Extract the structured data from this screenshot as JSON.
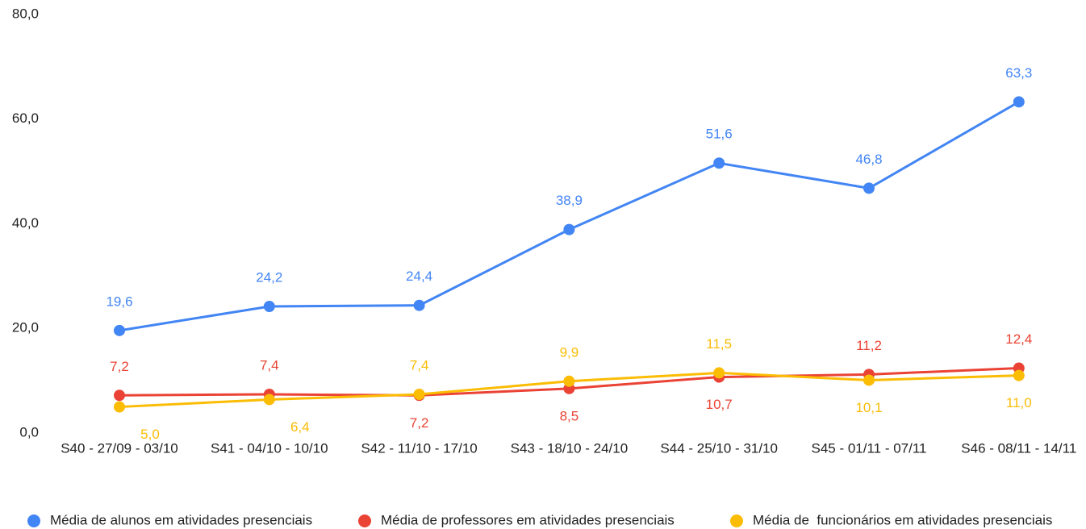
{
  "chart_data": {
    "type": "line",
    "categories": [
      "S40 - 27/09 - 03/10",
      "S41 - 04/10 - 10/10",
      "S42 - 11/10 - 17/10",
      "S43 - 18/10 - 24/10",
      "S44 - 25/10 - 31/10",
      "S45 - 01/11 - 07/11",
      "S46 - 08/11 - 14/11"
    ],
    "series": [
      {
        "name": "Média de alunos em atividades presenciais",
        "color": "#4285f4",
        "values": [
          19.6,
          24.2,
          24.4,
          38.9,
          51.6,
          46.8,
          63.3
        ],
        "value_labels": [
          "19,6",
          "24,2",
          "24,4",
          "38,9",
          "51,6",
          "46,8",
          "63,3"
        ]
      },
      {
        "name": "Média de professores em atividades presenciais",
        "color": "#ea4335",
        "values": [
          7.2,
          7.4,
          7.2,
          8.5,
          10.7,
          11.2,
          12.4
        ],
        "value_labels": [
          "7,2",
          "7,4",
          "7,2",
          "8,5",
          "10,7",
          "11,2",
          "12,4"
        ]
      },
      {
        "name": "Média de  funcionários em atividades presenciais",
        "color": "#fbbc04",
        "values": [
          5.0,
          6.4,
          7.4,
          9.9,
          11.5,
          10.1,
          11.0
        ],
        "value_labels": [
          "5,0",
          "6,4",
          "7,4",
          "9,9",
          "11,5",
          "10,1",
          "11,0"
        ]
      }
    ],
    "ylim": [
      0,
      80
    ],
    "yticks": [
      {
        "value": 0,
        "label": "0,0"
      },
      {
        "value": 20,
        "label": "20,0"
      },
      {
        "value": 40,
        "label": "40,0"
      },
      {
        "value": 60,
        "label": "60,0"
      },
      {
        "value": 80,
        "label": "80,0"
      }
    ],
    "grid": false,
    "legend": "bottom"
  }
}
